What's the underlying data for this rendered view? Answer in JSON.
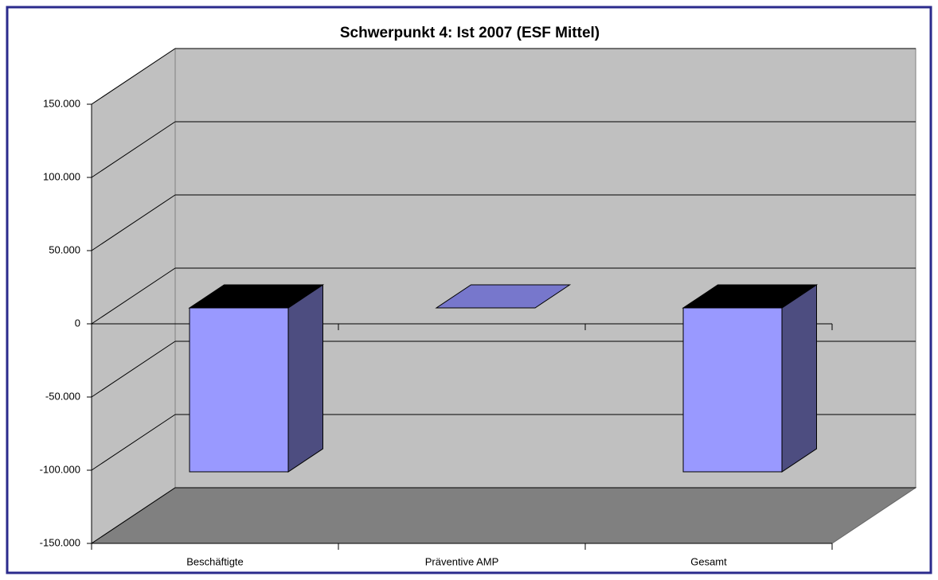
{
  "chart_data": {
    "type": "bar3d",
    "title": "Schwerpunkt 4: Ist 2007 (ESF Mittel)",
    "categories": [
      "Beschäftigte",
      "Präventive AMP",
      "Gesamt"
    ],
    "values": [
      -112000,
      0,
      -112000
    ],
    "color": "#9999ff",
    "ylim": [
      -150000,
      150000
    ],
    "yticks": [
      {
        "value": -150000,
        "label": "-150.000"
      },
      {
        "value": -100000,
        "label": "-100.000"
      },
      {
        "value": -50000,
        "label": "-50.000"
      },
      0,
      {
        "value": 50000,
        "label": "50.000"
      },
      {
        "value": 100000,
        "label": "100.000"
      },
      {
        "value": 150000,
        "label": "150.000"
      }
    ],
    "grid": true
  }
}
